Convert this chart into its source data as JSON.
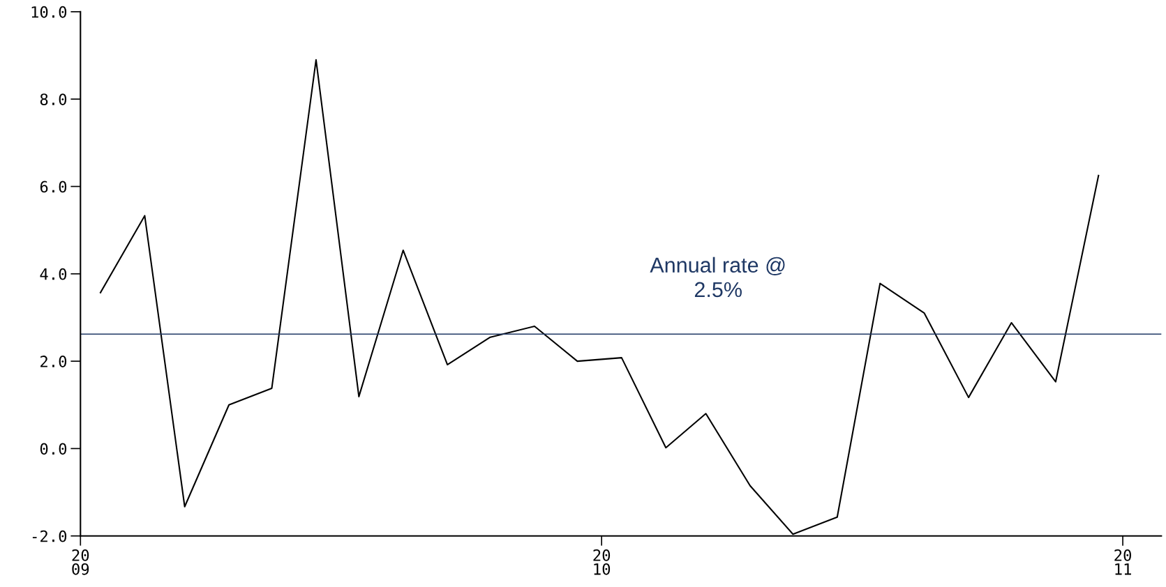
{
  "chart_data": {
    "type": "line",
    "x": [
      "2009-01-15",
      "2009-02-15",
      "2009-03-15",
      "2009-04-15",
      "2009-05-15",
      "2009-06-15",
      "2009-07-15",
      "2009-08-15",
      "2009-09-15",
      "2009-10-15",
      "2009-11-15",
      "2009-12-15",
      "2010-01-15",
      "2010-02-15",
      "2010-03-15",
      "2010-04-15",
      "2010-05-15",
      "2010-06-15",
      "2010-07-15",
      "2010-08-15",
      "2010-09-15",
      "2010-10-15",
      "2010-11-15",
      "2010-12-15"
    ],
    "series": [
      {
        "color": "#000000",
        "values": [
          3.57,
          5.33,
          -1.33,
          1.0,
          1.38,
          8.9,
          1.19,
          4.54,
          1.92,
          2.55,
          2.8,
          2.0,
          2.08,
          0.02,
          0.8,
          -0.85,
          -1.96,
          -1.57,
          3.78,
          3.1,
          1.17,
          2.88,
          1.53,
          6.25
        ]
      }
    ],
    "xlim": [
      "2009-01-01",
      "2011-01-28"
    ],
    "xticks": [
      {
        "value": "2009-01-01",
        "label": "20\n09"
      },
      {
        "value": "2010-01-01",
        "label": "20\n10"
      },
      {
        "value": "2011-01-01",
        "label": "20\n11"
      }
    ],
    "ylim": [
      -2.0,
      10.0
    ],
    "yticks": [
      {
        "value": -2.0,
        "label": "-2.0"
      },
      {
        "value": 0.0,
        "label": "0.0"
      },
      {
        "value": 2.0,
        "label": "2.0"
      },
      {
        "value": 4.0,
        "label": "4.0"
      },
      {
        "value": 6.0,
        "label": "6.0"
      },
      {
        "value": 8.0,
        "label": "8.0"
      },
      {
        "value": 10.0,
        "label": "10.0"
      }
    ],
    "ref_lines": [
      {
        "axis": "y",
        "value": 2.62,
        "label": "Annual rate @\n2.5%",
        "color": "#1f3864"
      }
    ],
    "grid": false,
    "legend": false,
    "marker": "none",
    "line_style": "solid"
  }
}
